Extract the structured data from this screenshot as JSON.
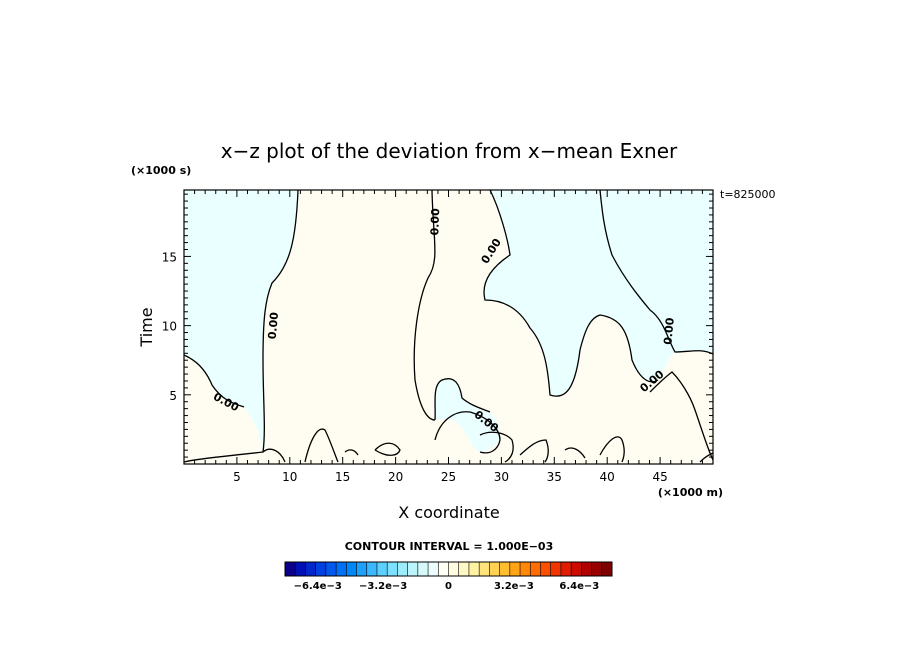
{
  "chart_data": {
    "type": "contour",
    "title": "x−z plot of the deviation from x−mean Exner",
    "xlabel": "X coordinate",
    "ylabel": "Time",
    "x_unit_label": "(×1000 m)",
    "y_unit_label": "(×1000 s)",
    "time_stamp": "t=825000",
    "xlim": [
      0,
      50
    ],
    "ylim": [
      0,
      19.8
    ],
    "x_ticks": [
      5,
      10,
      15,
      20,
      25,
      30,
      35,
      40,
      45
    ],
    "y_ticks": [
      5,
      10,
      15
    ],
    "contour_interval_label": "CONTOUR INTERVAL = 1.000E−03",
    "contour_labels": [
      {
        "text": "0.00",
        "x": 4.0,
        "y": 4.5,
        "angle": 28
      },
      {
        "text": "0.00",
        "x": 8.4,
        "y": 10.0,
        "angle": -85
      },
      {
        "text": "0.00",
        "x": 23.7,
        "y": 17.5,
        "angle": -88
      },
      {
        "text": "0.00",
        "x": 29.0,
        "y": 15.4,
        "angle": -58
      },
      {
        "text": "0.00",
        "x": 28.6,
        "y": 3.1,
        "angle": 38
      },
      {
        "text": "0.00",
        "x": 45.8,
        "y": 9.6,
        "angle": -85
      },
      {
        "text": "0.00",
        "x": 44.2,
        "y": 6.0,
        "angle": -40
      }
    ],
    "fill_colors": {
      "negative_region": "#eaffff",
      "positive_region": "#fffdf1"
    },
    "colorbar": {
      "tick_labels": [
        "−6.4e−3",
        "−3.2e−3",
        "0",
        "3.2e−3",
        "6.4e−3"
      ],
      "tick_values": [
        -0.0064,
        -0.0032,
        0,
        0.0032,
        0.0064
      ],
      "range": [
        -0.008,
        0.008
      ],
      "colors": [
        "#0a008c",
        "#0010b4",
        "#0026cc",
        "#0040e0",
        "#0058ee",
        "#0070f6",
        "#0088fa",
        "#1ea0fc",
        "#3cb8fc",
        "#5ccffc",
        "#7de0fc",
        "#9decfc",
        "#bcf4fc",
        "#d6fafc",
        "#ebfdfd",
        "#fffff6",
        "#fffce0",
        "#fff8c4",
        "#fff2a2",
        "#ffe47c",
        "#ffd254",
        "#ffbe2e",
        "#ffa414",
        "#ff8808",
        "#ff6c04",
        "#fb5000",
        "#f13400",
        "#e21c00",
        "#cc0a00",
        "#b00000",
        "#980000",
        "#7e0000"
      ]
    }
  }
}
